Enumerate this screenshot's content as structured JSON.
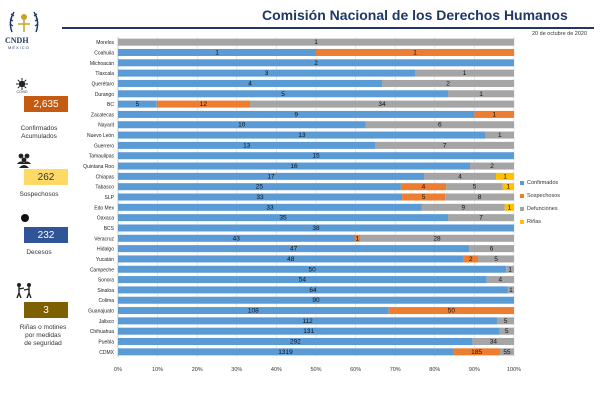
{
  "header": {
    "org_short": "CNDH",
    "org_sub": "MÉXICO",
    "title": "Comisión Nacional de los Derechos Humanos",
    "date": "20 de octubre de 2020"
  },
  "stats": [
    {
      "icon": "virus-icon",
      "icon_text": "COVID",
      "value": "2,635",
      "label_lines": [
        "Confirmados",
        "Acumulados"
      ],
      "color": "#c55a11",
      "text_color": "#ffffff"
    },
    {
      "icon": "people-icon",
      "value": "262",
      "label_lines": [
        "Sospechosos"
      ],
      "color": "#ffd966",
      "text_color": "#333333"
    },
    {
      "icon": "dot-icon",
      "value": "232",
      "label_lines": [
        "Decesos"
      ],
      "color": "#2f5597",
      "text_color": "#ffffff"
    },
    {
      "icon": "fight-icon",
      "value": "3",
      "label_lines": [
        "Riñas o motines",
        "por medidas",
        "de seguridad"
      ],
      "color": "#7f6000",
      "text_color": "#ffffff"
    }
  ],
  "chart_data": {
    "type": "bar",
    "orientation": "horizontal",
    "stacked": "percent",
    "categories": [
      "Morelos",
      "Coahuila",
      "Michoacán",
      "Tlaxcala",
      "Querétaro",
      "Durango",
      "BC",
      "Zacatecas",
      "Nayarit",
      "Nuevo León",
      "Guerrero",
      "Tamaulipas",
      "Quintana Roo",
      "Chiapas",
      "Tabasco",
      "SLP",
      "Edo Mex",
      "Oaxaca",
      "BCS",
      "Veracruz",
      "Hidalgo",
      "Yucatán",
      "Campeche",
      "Sonora",
      "Sinaloa",
      "Colima",
      "Guanajuato",
      "Jalisco",
      "Chihuahua",
      "Puebla",
      "CDMX"
    ],
    "series": [
      {
        "name": "Confirmados",
        "color": "#5b9bd5",
        "values": [
          0,
          1,
          2,
          3,
          4,
          5,
          5,
          9,
          10,
          13,
          13,
          15,
          16,
          17,
          25,
          33,
          33,
          35,
          38,
          43,
          47,
          48,
          50,
          54,
          64,
          90,
          108,
          112,
          131,
          292,
          1319
        ]
      },
      {
        "name": "Sospechosos",
        "color": "#ed7d31",
        "values": [
          0,
          1,
          0,
          0,
          0,
          0,
          12,
          1,
          0,
          0,
          0,
          0,
          0,
          0,
          4,
          5,
          0,
          0,
          0,
          1,
          0,
          2,
          0,
          0,
          0,
          0,
          50,
          0,
          0,
          0,
          185
        ]
      },
      {
        "name": "Defunciones",
        "color": "#a5a5a5",
        "values": [
          1,
          0,
          0,
          1,
          2,
          1,
          34,
          0,
          6,
          1,
          7,
          0,
          2,
          4,
          5,
          8,
          9,
          7,
          0,
          28,
          6,
          5,
          1,
          4,
          1,
          0,
          0,
          5,
          5,
          34,
          55
        ]
      },
      {
        "name": "Riñas",
        "color": "#ffc000",
        "values": [
          0,
          0,
          0,
          0,
          0,
          0,
          0,
          0,
          0,
          0,
          0,
          0,
          0,
          1,
          1,
          0,
          1,
          0,
          0,
          0,
          0,
          0,
          0,
          0,
          0,
          0,
          0,
          0,
          0,
          0,
          0
        ]
      }
    ],
    "xticks": [
      "0%",
      "10%",
      "20%",
      "30%",
      "40%",
      "50%",
      "60%",
      "70%",
      "80%",
      "90%",
      "100%"
    ],
    "xlim": [
      0,
      100
    ],
    "legend_position": "right"
  }
}
